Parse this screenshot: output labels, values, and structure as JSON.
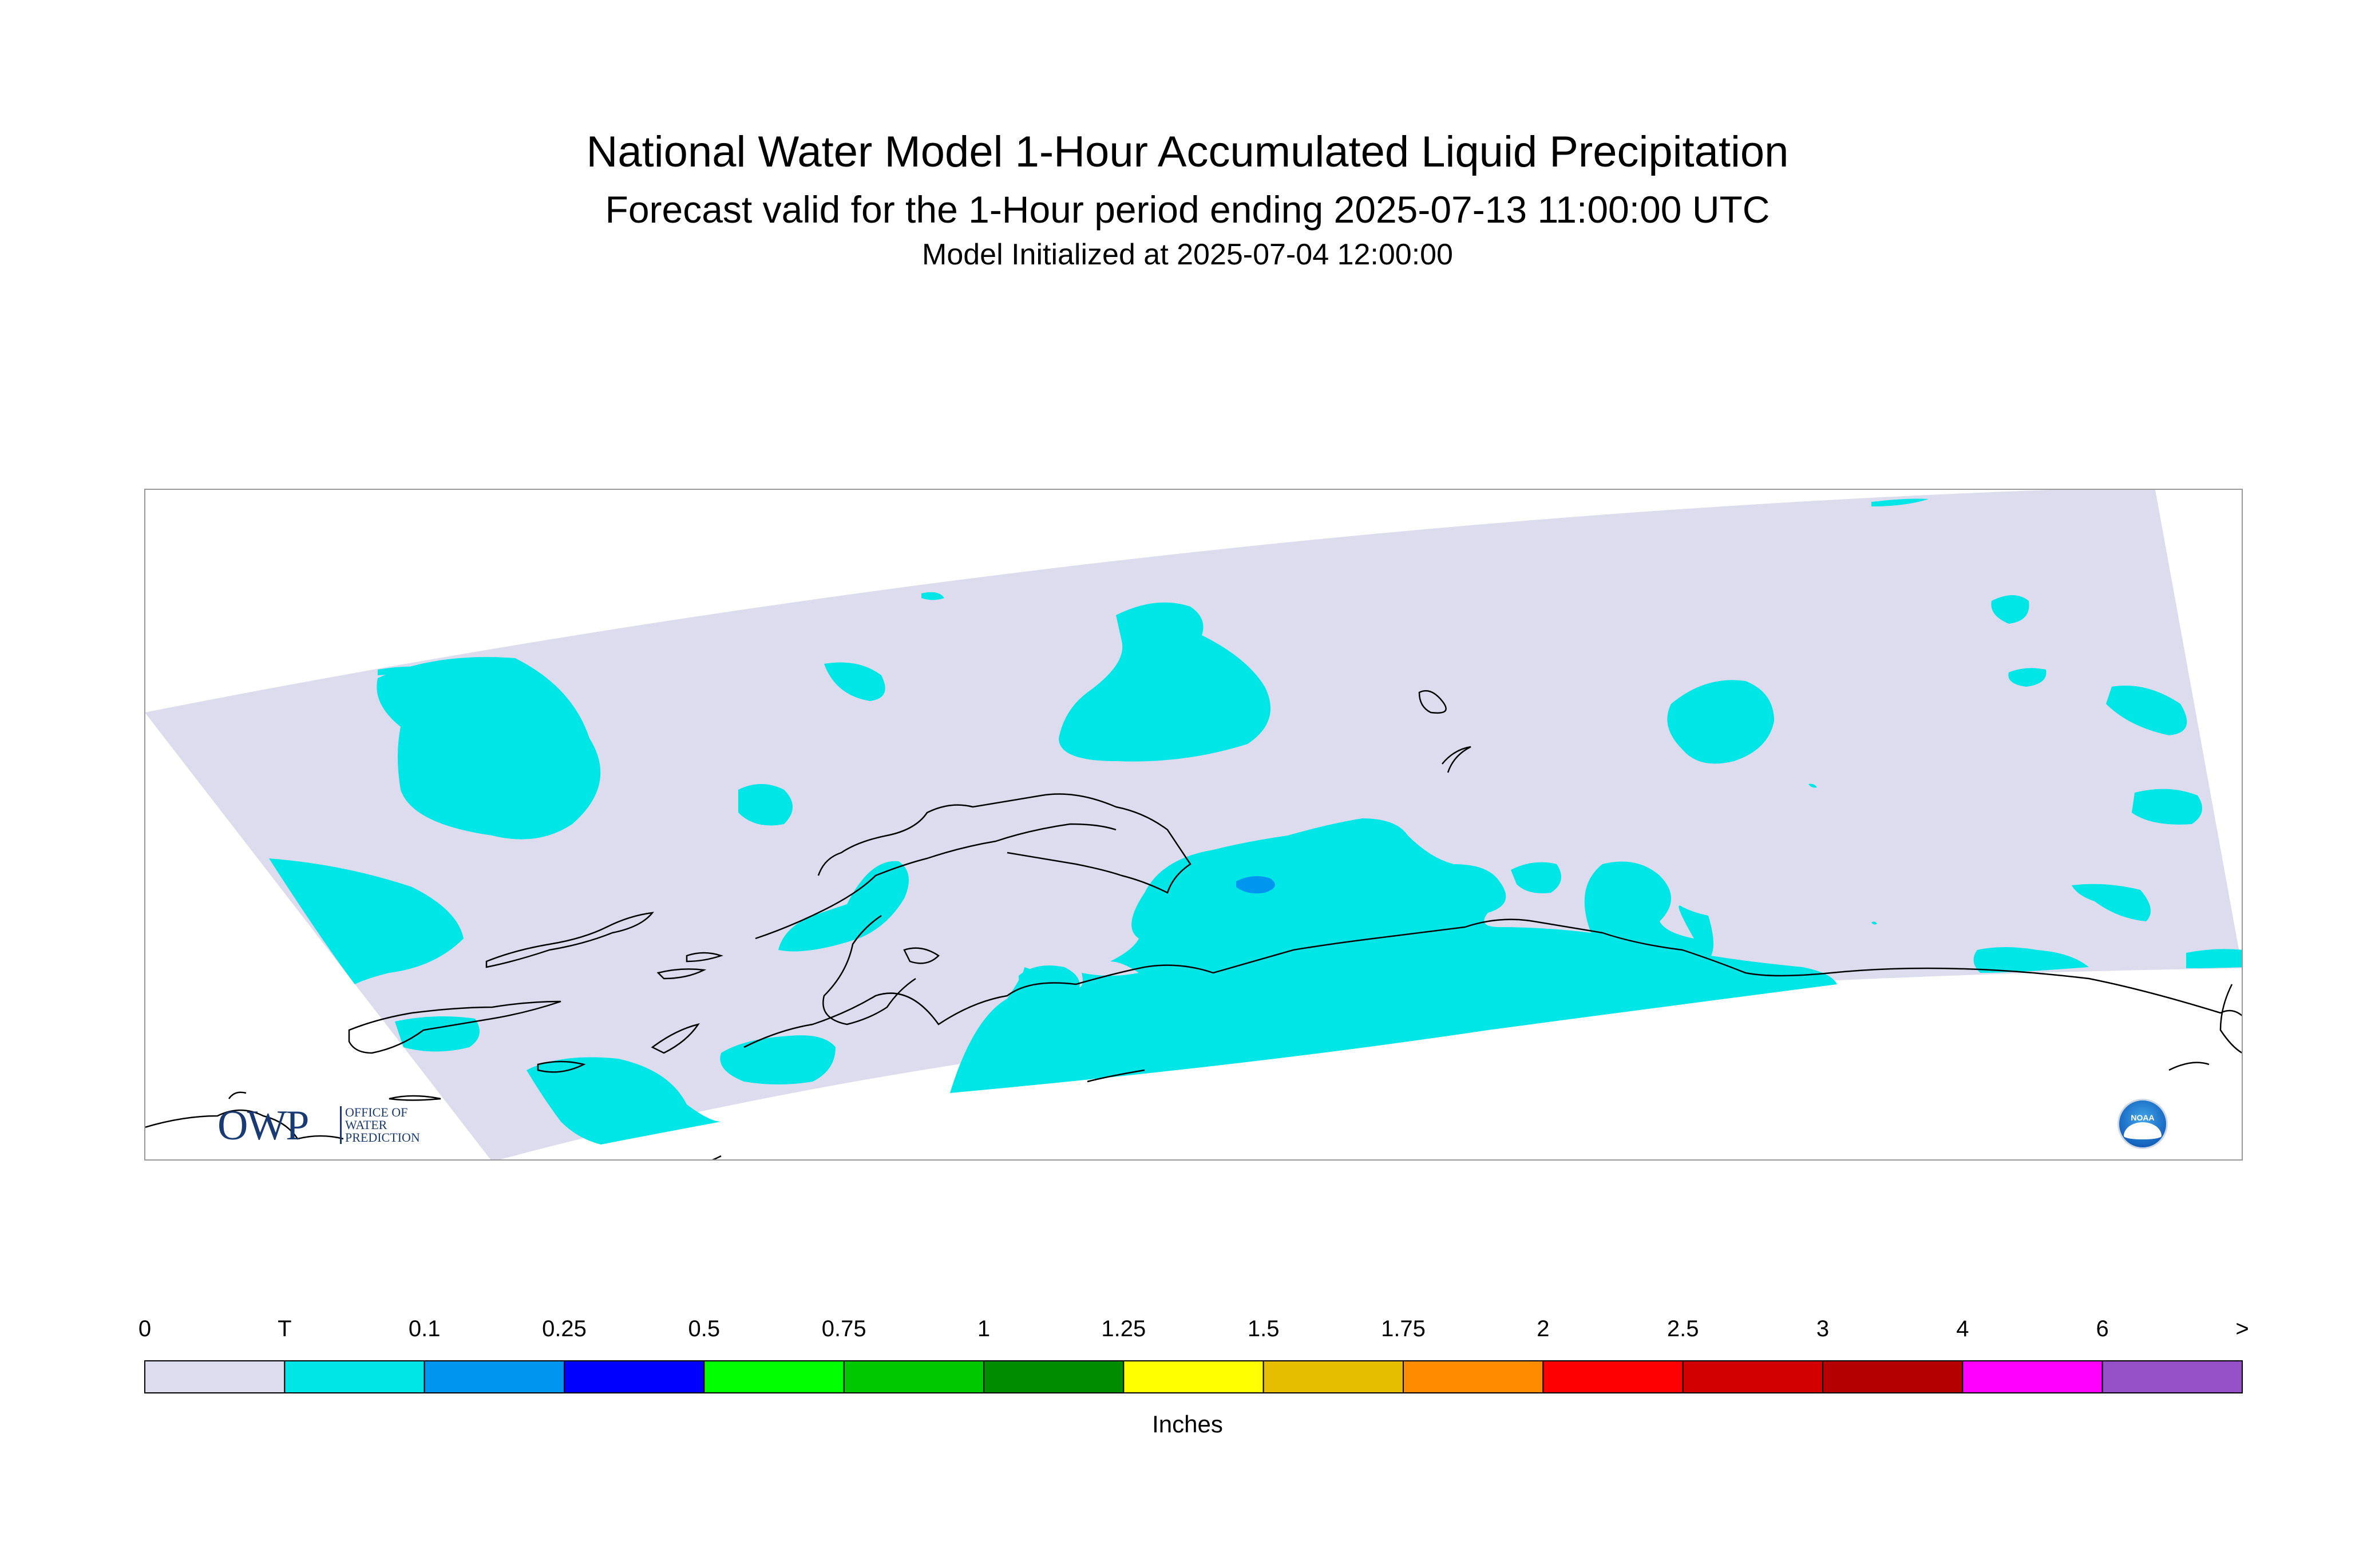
{
  "header": {
    "title": "National Water Model 1-Hour Accumulated Liquid Precipitation",
    "subtitle": "Forecast valid for the 1-Hour period ending 2025-07-13 11:00:00 UTC",
    "init": "Model Initialized at 2025-07-04 12:00:00"
  },
  "colorbar": {
    "units": "Inches",
    "labels": [
      "0",
      "T",
      "0.1",
      "0.25",
      "0.5",
      "0.75",
      "1",
      "1.25",
      "1.5",
      "1.75",
      "2",
      "2.5",
      "3",
      "4",
      "6",
      ">"
    ],
    "colors": [
      "#dcdcee",
      "#00e6e6",
      "#0096f0",
      "#0000ff",
      "#00ff00",
      "#00c800",
      "#008c00",
      "#ffff00",
      "#e6be00",
      "#ff8c00",
      "#ff0000",
      "#d20000",
      "#b40000",
      "#ff00ff",
      "#9650c8"
    ]
  },
  "logos": {
    "owp_main": "OWP",
    "owp_sub": [
      "OFFICE OF",
      "WATER",
      "PREDICTION"
    ],
    "noaa": "NOAA"
  },
  "colors": {
    "domain_fill": "#dcdcee",
    "trace_fill": "#00e6e6",
    "light_fill": "#0096f0",
    "coastline": "#000000"
  }
}
